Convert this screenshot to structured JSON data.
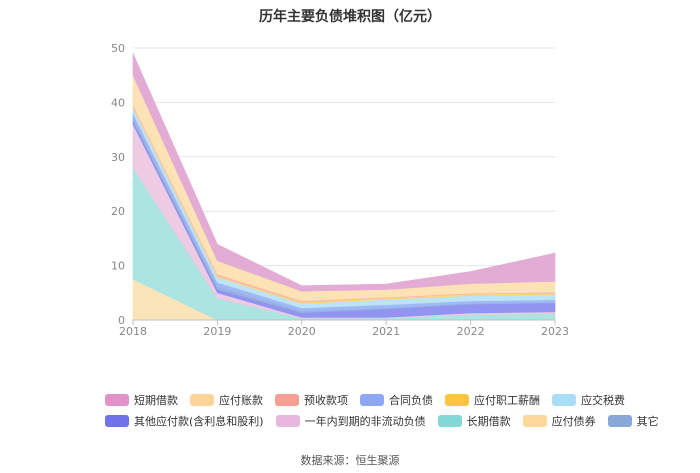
{
  "title": "历年主要负债堆积图（亿元）",
  "source": "数据来源：恒生聚源",
  "chart_data": {
    "type": "area",
    "stacked": true,
    "x": [
      "2018",
      "2019",
      "2020",
      "2021",
      "2022",
      "2023"
    ],
    "ylim": [
      0,
      50
    ],
    "yticks": [
      0,
      10,
      20,
      30,
      40,
      50
    ],
    "grid": true,
    "legend_position": "bottom",
    "series": [
      {
        "name": "应付债券",
        "color": "#fbe3b5",
        "values": [
          7.5,
          0,
          0,
          0,
          0,
          0
        ]
      },
      {
        "name": "长期借款",
        "color": "#a8e3e0",
        "values": [
          20.5,
          4.0,
          0.3,
          0.4,
          1.0,
          1.2
        ]
      },
      {
        "name": "一年内到期的非流动负债",
        "color": "#ecc8e0",
        "values": [
          8.0,
          1.0,
          0.2,
          0.1,
          0.3,
          0.3
        ]
      },
      {
        "name": "其他应付款(含利息和股利)",
        "color": "#8b8ef0",
        "values": [
          0.5,
          0.6,
          0.8,
          1.5,
          1.6,
          1.6
        ]
      },
      {
        "name": "其它",
        "color": "#93add9",
        "values": [
          0.5,
          0.5,
          0.3,
          0.2,
          0.1,
          0.1
        ]
      },
      {
        "name": "合同负债",
        "color": "#9bb4f5",
        "values": [
          1.0,
          0.8,
          0.6,
          0.6,
          0.5,
          0.5
        ]
      },
      {
        "name": "应交税费",
        "color": "#b8e2f5",
        "values": [
          1.0,
          1.0,
          0.8,
          1.0,
          1.0,
          1.0
        ]
      },
      {
        "name": "应付职工薪酬",
        "color": "#fdd27d",
        "values": [
          0.2,
          0.2,
          0.3,
          0.3,
          0.3,
          0.3
        ]
      },
      {
        "name": "预收款项",
        "color": "#f9b3a6",
        "values": [
          0.3,
          0.3,
          0.2,
          0.1,
          0.1,
          0.1
        ]
      },
      {
        "name": "应付账款",
        "color": "#fde0b1",
        "values": [
          5.5,
          2.5,
          1.8,
          1.4,
          1.8,
          2.0
        ]
      },
      {
        "name": "短期借款",
        "color": "#e2a8d3",
        "values": [
          4.0,
          3.0,
          1.0,
          1.0,
          2.2,
          5.2
        ]
      }
    ]
  },
  "legend_rows": [
    [
      {
        "name": "短期借款",
        "color": "#e291c9"
      },
      {
        "name": "应付账款",
        "color": "#fdd49a"
      },
      {
        "name": "预收款项",
        "color": "#f6a093"
      },
      {
        "name": "合同负债",
        "color": "#8fa6f5"
      },
      {
        "name": "应付职工薪酬",
        "color": "#fcc440"
      },
      {
        "name": "应交税费",
        "color": "#a9ddf5"
      }
    ],
    [
      {
        "name": "其他应付款(含利息和股利)",
        "color": "#6f72e8"
      },
      {
        "name": "一年内到期的非流动负债",
        "color": "#e8b8dc"
      },
      {
        "name": "长期借款",
        "color": "#82d8d5"
      },
      {
        "name": "应付债券",
        "color": "#fbd89c"
      },
      {
        "name": "其它",
        "color": "#8aa8d6"
      }
    ]
  ]
}
